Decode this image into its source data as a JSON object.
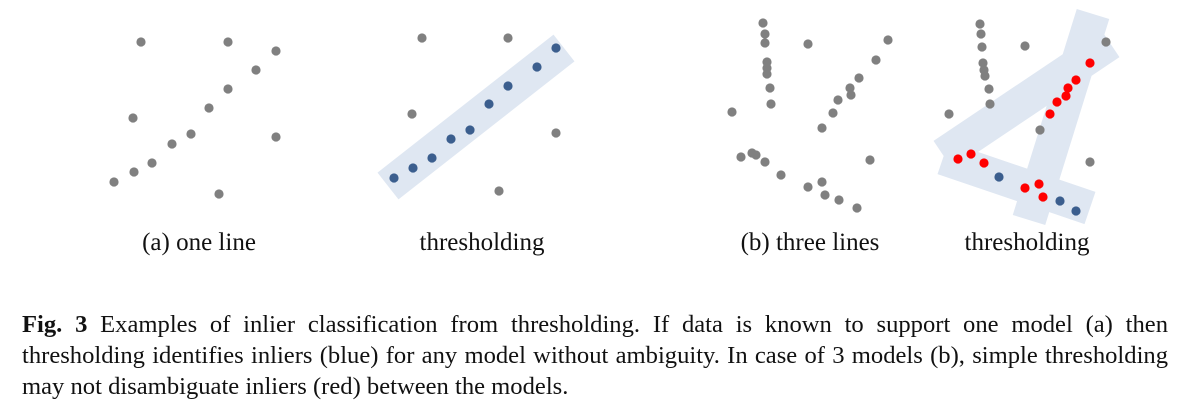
{
  "figure": {
    "colors": {
      "outlier": "#808080",
      "inlier_blue": "#3b5e8e",
      "inlier_red": "#ff0000",
      "band": "#dfe7f2"
    },
    "panels": [
      {
        "id": "a",
        "label": "(a) one line"
      },
      {
        "id": "a-thr",
        "label": "thresholding"
      },
      {
        "id": "b",
        "label": "(b) three lines"
      },
      {
        "id": "b-thr",
        "label": "thresholding"
      }
    ]
  },
  "caption": {
    "number": "Fig. 3",
    "text": "Examples of inlier classification from thresholding. If data is known to support one model (a) then thresholding identifies inliers (blue) for any model without ambiguity. In case of 3 models (b), simple thresholding may not disambiguate inliers (red) between the models."
  }
}
